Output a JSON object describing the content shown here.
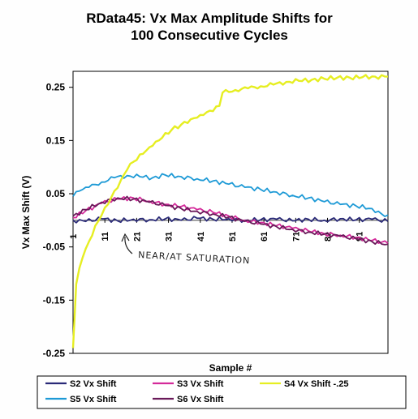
{
  "chart_data": {
    "type": "line",
    "title_lines": [
      "RData45:    Vx  Max  Amplitude  Shifts  for",
      "100  Consecutive  Cycles"
    ],
    "xlabel": "Sample  #",
    "ylabel": "Vx  Max  Shift  (V)",
    "xlim": [
      1,
      100
    ],
    "ylim": [
      -0.25,
      0.28
    ],
    "yticks": [
      0.25,
      0.15,
      0.05,
      -0.05,
      -0.15,
      -0.25
    ],
    "ytick_labels": [
      "0.25",
      "0.15",
      "0.05",
      "-0.05",
      "-0.15",
      "-0.25"
    ],
    "xticks": [
      1,
      11,
      21,
      31,
      41,
      51,
      61,
      71,
      81,
      91
    ],
    "xtick_labels": [
      "1",
      "11",
      "21",
      "31",
      "41",
      "51",
      "61",
      "71",
      "81",
      "91"
    ],
    "grid": false,
    "legend_position": "bottom",
    "annotation": "NEAR/AT SATURATION",
    "series": [
      {
        "name": "S2  Vx  Shift",
        "color": "#2a2a78",
        "points": [
          [
            1,
            0.0
          ],
          [
            5,
            -0.002
          ],
          [
            10,
            0.003
          ],
          [
            15,
            -0.001
          ],
          [
            20,
            0.002
          ],
          [
            25,
            0.001
          ],
          [
            30,
            0.003
          ],
          [
            35,
            0.0
          ],
          [
            40,
            0.004
          ],
          [
            45,
            0.002
          ],
          [
            50,
            0.003
          ],
          [
            55,
            0.0
          ],
          [
            60,
            0.001
          ],
          [
            65,
            0.002
          ],
          [
            70,
            -0.001
          ],
          [
            75,
            0.002
          ],
          [
            80,
            0.0
          ],
          [
            85,
            0.003
          ],
          [
            90,
            0.001
          ],
          [
            95,
            0.002
          ],
          [
            100,
            -0.002
          ]
        ]
      },
      {
        "name": "S5  Vx  Shift",
        "color": "#1e9ad6",
        "points": [
          [
            1,
            0.045
          ],
          [
            3,
            0.055
          ],
          [
            6,
            0.062
          ],
          [
            10,
            0.072
          ],
          [
            14,
            0.08
          ],
          [
            18,
            0.084
          ],
          [
            22,
            0.082
          ],
          [
            26,
            0.08
          ],
          [
            30,
            0.085
          ],
          [
            35,
            0.082
          ],
          [
            40,
            0.078
          ],
          [
            45,
            0.074
          ],
          [
            50,
            0.068
          ],
          [
            55,
            0.062
          ],
          [
            60,
            0.058
          ],
          [
            65,
            0.053
          ],
          [
            70,
            0.047
          ],
          [
            75,
            0.042
          ],
          [
            80,
            0.035
          ],
          [
            85,
            0.03
          ],
          [
            90,
            0.027
          ],
          [
            95,
            0.022
          ],
          [
            98,
            0.012
          ],
          [
            100,
            0.01
          ]
        ]
      },
      {
        "name": "S3  Vx  Shift",
        "color": "#d42a9a",
        "points": [
          [
            1,
            0.005
          ],
          [
            5,
            0.018
          ],
          [
            10,
            0.032
          ],
          [
            15,
            0.04
          ],
          [
            20,
            0.042
          ],
          [
            25,
            0.036
          ],
          [
            30,
            0.03
          ],
          [
            35,
            0.026
          ],
          [
            40,
            0.02
          ],
          [
            45,
            0.015
          ],
          [
            50,
            0.008
          ],
          [
            55,
            0.0
          ],
          [
            60,
            -0.004
          ],
          [
            65,
            -0.01
          ],
          [
            70,
            -0.015
          ],
          [
            75,
            -0.02
          ],
          [
            80,
            -0.025
          ],
          [
            85,
            -0.028
          ],
          [
            90,
            -0.032
          ],
          [
            95,
            -0.038
          ],
          [
            100,
            -0.043
          ]
        ]
      },
      {
        "name": "S6  Vx  Shift",
        "color": "#6a1a5a",
        "points": [
          [
            1,
            0.008
          ],
          [
            5,
            0.02
          ],
          [
            10,
            0.034
          ],
          [
            15,
            0.042
          ],
          [
            20,
            0.04
          ],
          [
            25,
            0.034
          ],
          [
            30,
            0.028
          ],
          [
            35,
            0.022
          ],
          [
            40,
            0.017
          ],
          [
            45,
            0.012
          ],
          [
            50,
            0.006
          ],
          [
            55,
            -0.002
          ],
          [
            60,
            -0.007
          ],
          [
            65,
            -0.012
          ],
          [
            70,
            -0.017
          ],
          [
            75,
            -0.022
          ],
          [
            80,
            -0.026
          ],
          [
            85,
            -0.03
          ],
          [
            90,
            -0.035
          ],
          [
            95,
            -0.04
          ],
          [
            100,
            -0.045
          ]
        ]
      },
      {
        "name": "S4  Vx  Shift  -.25",
        "color": "#e6ee22",
        "points": [
          [
            1,
            -0.24
          ],
          [
            2,
            -0.12
          ],
          [
            3,
            -0.09
          ],
          [
            4,
            -0.07
          ],
          [
            6,
            -0.04
          ],
          [
            8,
            -0.01
          ],
          [
            10,
            0.01
          ],
          [
            12,
            0.03
          ],
          [
            14,
            0.055
          ],
          [
            16,
            0.075
          ],
          [
            18,
            0.095
          ],
          [
            20,
            0.11
          ],
          [
            23,
            0.125
          ],
          [
            26,
            0.14
          ],
          [
            29,
            0.155
          ],
          [
            32,
            0.17
          ],
          [
            35,
            0.18
          ],
          [
            38,
            0.19
          ],
          [
            41,
            0.198
          ],
          [
            44,
            0.206
          ],
          [
            47,
            0.215
          ],
          [
            48,
            0.24
          ],
          [
            52,
            0.245
          ],
          [
            56,
            0.248
          ],
          [
            60,
            0.252
          ],
          [
            64,
            0.255
          ],
          [
            68,
            0.26
          ],
          [
            72,
            0.262
          ],
          [
            76,
            0.264
          ],
          [
            80,
            0.266
          ],
          [
            84,
            0.268
          ],
          [
            88,
            0.268
          ],
          [
            92,
            0.269
          ],
          [
            96,
            0.27
          ],
          [
            100,
            0.27
          ]
        ]
      }
    ]
  }
}
